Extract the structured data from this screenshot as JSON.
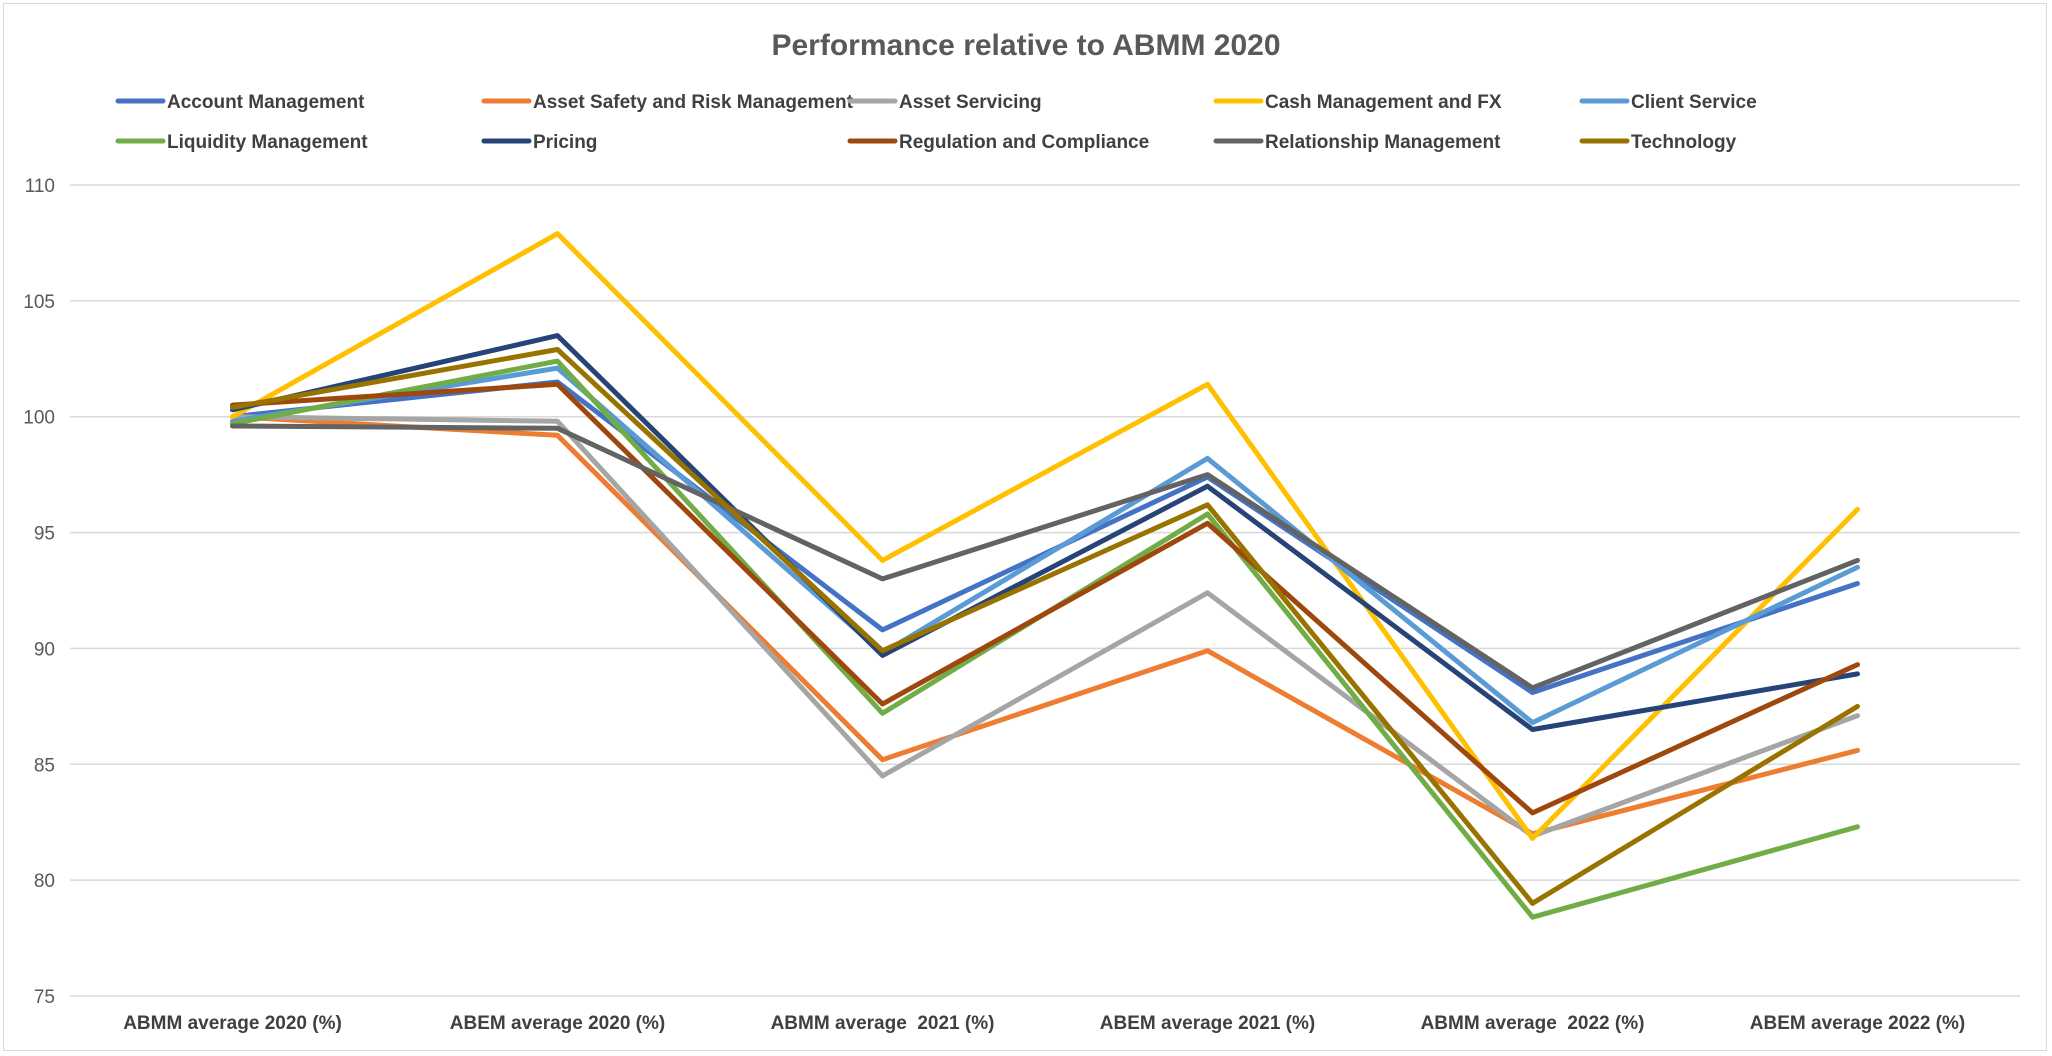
{
  "chart_data": {
    "type": "line",
    "title": "Performance relative to ABMM 2020",
    "xlabel": "",
    "ylabel": "",
    "ylim": [
      75,
      110
    ],
    "yticks": [
      "75",
      "80",
      "85",
      "90",
      "95",
      "100",
      "105",
      "110"
    ],
    "grid": true,
    "legend_position": "top",
    "categories": [
      "ABMM average 2020 (%)",
      "ABEM average 2020 (%)",
      "ABMM average  2021 (%)",
      "ABEM average 2021 (%)",
      "ABMM average  2022 (%)",
      "ABEM average 2022 (%)"
    ],
    "series": [
      {
        "name": "Account Management",
        "color": "#4472c4",
        "values": [
          100.0,
          101.5,
          90.8,
          97.4,
          88.1,
          92.8
        ]
      },
      {
        "name": "Asset Safety and Risk Management",
        "color": "#ed7d31",
        "values": [
          100.0,
          99.2,
          85.2,
          89.9,
          82.0,
          85.6
        ]
      },
      {
        "name": "Asset Servicing",
        "color": "#a5a5a5",
        "values": [
          100.0,
          99.8,
          84.5,
          92.4,
          81.9,
          87.1
        ]
      },
      {
        "name": "Cash Management and FX",
        "color": "#ffc000",
        "values": [
          100.0,
          107.9,
          93.8,
          101.4,
          81.8,
          96.0
        ]
      },
      {
        "name": "Client Service",
        "color": "#5b9bd5",
        "values": [
          99.8,
          102.1,
          89.8,
          98.2,
          86.8,
          93.5
        ]
      },
      {
        "name": "Liquidity Management",
        "color": "#70ad47",
        "values": [
          99.7,
          102.4,
          87.2,
          95.8,
          78.4,
          82.3
        ]
      },
      {
        "name": "Pricing",
        "color": "#264478",
        "values": [
          100.3,
          103.5,
          89.7,
          97.0,
          86.5,
          88.9
        ]
      },
      {
        "name": "Regulation and Compliance",
        "color": "#9e480e",
        "values": [
          100.5,
          101.4,
          87.6,
          95.4,
          82.9,
          89.3
        ]
      },
      {
        "name": "Relationship Management",
        "color": "#636363",
        "values": [
          99.6,
          99.5,
          93.0,
          97.5,
          88.3,
          93.8
        ]
      },
      {
        "name": "Technology",
        "color": "#997300",
        "values": [
          100.4,
          102.9,
          89.9,
          96.2,
          79.0,
          87.5
        ]
      }
    ]
  }
}
